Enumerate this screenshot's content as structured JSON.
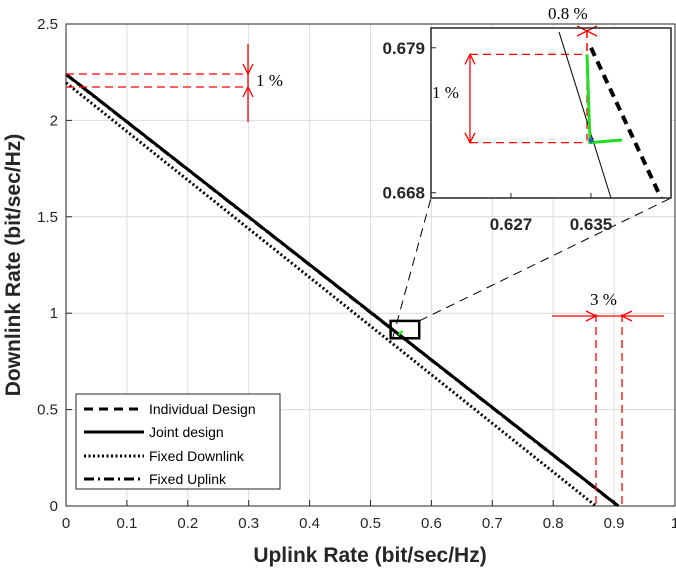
{
  "chart_data": {
    "type": "line",
    "xlabel": "Uplink Rate (bit/sec/Hz)",
    "ylabel": "Downlink Rate (bit/sec/Hz)",
    "xlim": [
      0,
      1
    ],
    "ylim": [
      0,
      2.5
    ],
    "x_ticks": [
      "0",
      "0.1",
      "0.2",
      "0.3",
      "0.4",
      "0.5",
      "0.6",
      "0.7",
      "0.8",
      "0.9",
      "1"
    ],
    "y_ticks": [
      "0",
      "0.5",
      "1",
      "1.5",
      "2",
      "2.5"
    ],
    "grid": true,
    "legend_position": "bottom-left",
    "series": [
      {
        "name": "Individual Design",
        "style": "dashed",
        "x": [
          0,
          0.907
        ],
        "y": [
          2.24,
          0
        ]
      },
      {
        "name": "Joint design",
        "style": "solid",
        "x": [
          0,
          0.907
        ],
        "y": [
          2.24,
          0
        ]
      },
      {
        "name": "Fixed Downlink",
        "style": "dotted",
        "x": [
          0,
          0.87
        ],
        "y": [
          2.195,
          0
        ]
      },
      {
        "name": "Fixed Uplink",
        "style": "dashdot",
        "x": [
          0,
          0.905
        ],
        "y": [
          2.235,
          0
        ]
      }
    ],
    "annotations": [
      "1 %",
      "3 %"
    ],
    "zoom_region": {
      "x": [
        0.533,
        0.58
      ],
      "y": [
        0.87,
        0.96
      ]
    },
    "inset": {
      "xlim": [
        0.619,
        0.643
      ],
      "ylim": [
        0.6676,
        0.6805
      ],
      "x_ticks": [
        "0.627",
        "0.635"
      ],
      "y_ticks": [
        "0.668",
        "0.679"
      ],
      "annotations": [
        "0.8 %",
        "1 %"
      ],
      "lines": [
        {
          "style": "dashed",
          "x": [
            0.635,
            0.642
          ],
          "y": [
            0.679,
            0.6676
          ]
        },
        {
          "style": "solid",
          "x": [
            0.6318,
            0.637
          ],
          "y": [
            0.6802,
            0.6676
          ]
        }
      ],
      "highlight_path": {
        "x": [
          0.6346,
          0.6349,
          0.6381
        ],
        "y": [
          0.6785,
          0.6718,
          0.672
        ]
      },
      "marker": {
        "x": 0.635,
        "y": 0.6718,
        "symbol": "*"
      }
    }
  }
}
